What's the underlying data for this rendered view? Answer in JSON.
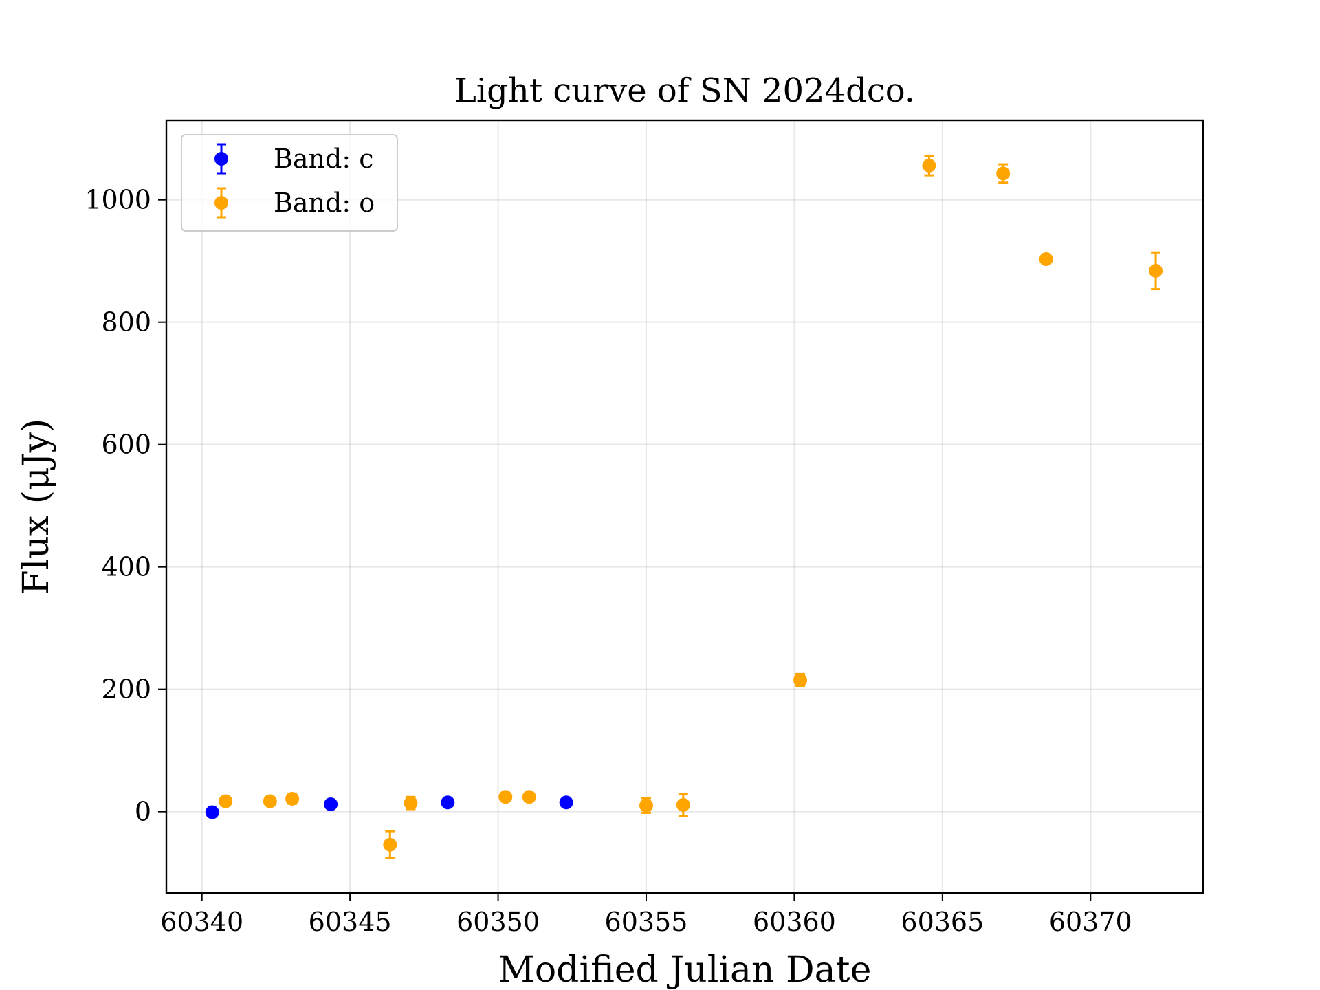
{
  "chart_data": {
    "type": "scatter",
    "title": "Light curve of SN 2024dco.",
    "xlabel": "Modified Julian Date",
    "ylabel": "Flux (μJy)",
    "xlim": [
      60338.8,
      60373.8
    ],
    "ylim": [
      -133,
      1130
    ],
    "xticks": [
      60340,
      60345,
      60350,
      60355,
      60360,
      60365,
      60370
    ],
    "yticks": [
      0,
      200,
      400,
      600,
      800,
      1000
    ],
    "grid": true,
    "legend_position": "top-left",
    "series": [
      {
        "name": "Band: c",
        "color": "#0000ff",
        "points": [
          {
            "x": 60340.35,
            "y": -1,
            "err": 5
          },
          {
            "x": 60344.35,
            "y": 12,
            "err": 5
          },
          {
            "x": 60348.3,
            "y": 15,
            "err": 5
          },
          {
            "x": 60352.3,
            "y": 15,
            "err": 5
          }
        ]
      },
      {
        "name": "Band: o",
        "color": "#ffa500",
        "points": [
          {
            "x": 60340.8,
            "y": 17,
            "err": 6
          },
          {
            "x": 60342.3,
            "y": 17,
            "err": 6
          },
          {
            "x": 60343.05,
            "y": 21,
            "err": 8
          },
          {
            "x": 60346.35,
            "y": -54,
            "err": 22
          },
          {
            "x": 60347.05,
            "y": 14,
            "err": 10
          },
          {
            "x": 60350.25,
            "y": 24,
            "err": 6
          },
          {
            "x": 60351.05,
            "y": 24,
            "err": 6
          },
          {
            "x": 60355.0,
            "y": 10,
            "err": 12
          },
          {
            "x": 60356.25,
            "y": 11,
            "err": 18
          },
          {
            "x": 60360.2,
            "y": 215,
            "err": 10
          },
          {
            "x": 60364.55,
            "y": 1056,
            "err": 16
          },
          {
            "x": 60367.05,
            "y": 1043,
            "err": 15
          },
          {
            "x": 60368.5,
            "y": 903,
            "err": 7
          },
          {
            "x": 60372.2,
            "y": 884,
            "err": 30
          }
        ]
      }
    ]
  }
}
